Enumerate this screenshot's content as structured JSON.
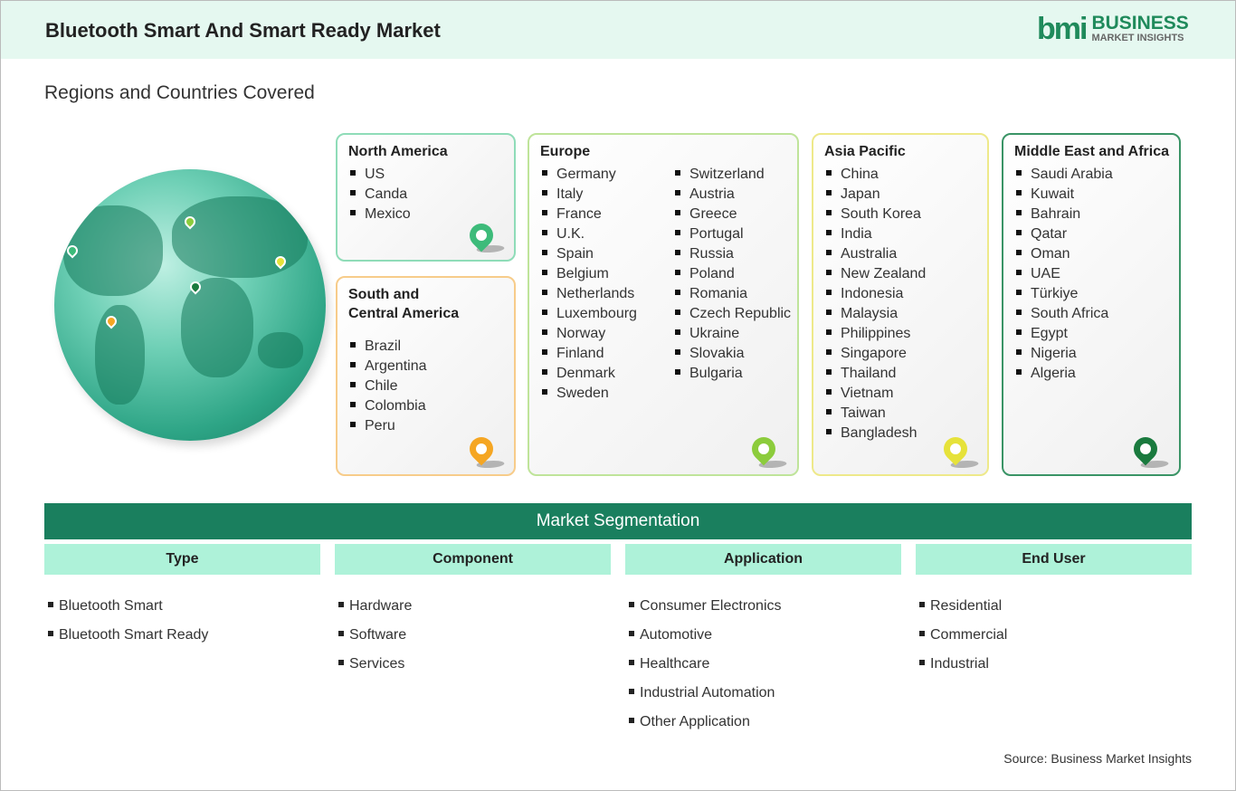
{
  "header": {
    "title": "Bluetooth Smart And Smart Ready Market",
    "logo_mark": "bmi",
    "logo_line1": "BUSINESS",
    "logo_line2": "MARKET INSIGHTS"
  },
  "subtitle": "Regions and Countries Covered",
  "regions": {
    "north_america": {
      "title": "North America",
      "items": [
        "US",
        "Canda",
        "Mexico"
      ],
      "pin_color": "#3dbb7a"
    },
    "south_america": {
      "title": "South and\nCentral America",
      "items": [
        "Brazil",
        "Argentina",
        "Chile",
        "Colombia",
        "Peru"
      ],
      "pin_color": "#f5a623"
    },
    "europe": {
      "title": "Europe",
      "col1": [
        "Germany",
        "Italy",
        "France",
        "U.K.",
        "Spain",
        "Belgium",
        "Netherlands",
        "Luxembourg",
        "Norway",
        "Finland",
        "Denmark",
        "Sweden"
      ],
      "col2": [
        "Switzerland",
        "Austria",
        "Greece",
        "Portugal",
        "Russia",
        "Poland",
        "Romania",
        "Czech Republic",
        "Ukraine",
        "Slovakia",
        "Bulgaria"
      ],
      "pin_color": "#8ccc3c"
    },
    "asia_pacific": {
      "title": "Asia Pacific",
      "items": [
        "China",
        "Japan",
        "South Korea",
        "India",
        "Australia",
        "New Zealand",
        "Indonesia",
        "Malaysia",
        "Philippines",
        "Singapore",
        "Thailand",
        "Vietnam",
        "Taiwan",
        "Bangladesh"
      ],
      "pin_color": "#e6e23a"
    },
    "mea": {
      "title": "Middle East and Africa",
      "items": [
        "Saudi Arabia",
        "Kuwait",
        "Bahrain",
        "Qatar",
        "Oman",
        "UAE",
        "Türkiye",
        "South Africa",
        "Egypt",
        "Nigeria",
        "Algeria"
      ],
      "pin_color": "#1a7a3e"
    }
  },
  "segmentation": {
    "title": "Market Segmentation",
    "columns": [
      {
        "header": "Type",
        "items": [
          "Bluetooth Smart",
          "Bluetooth Smart Ready"
        ]
      },
      {
        "header": "Component",
        "items": [
          "Hardware",
          "Software",
          "Services"
        ]
      },
      {
        "header": "Application",
        "items": [
          "Consumer Electronics",
          "Automotive",
          "Healthcare",
          "Industrial Automation",
          "Other Application"
        ]
      },
      {
        "header": "End User",
        "items": [
          "Residential",
          "Commercial",
          "Industrial"
        ]
      }
    ]
  },
  "source": "Source: Business Market Insights"
}
